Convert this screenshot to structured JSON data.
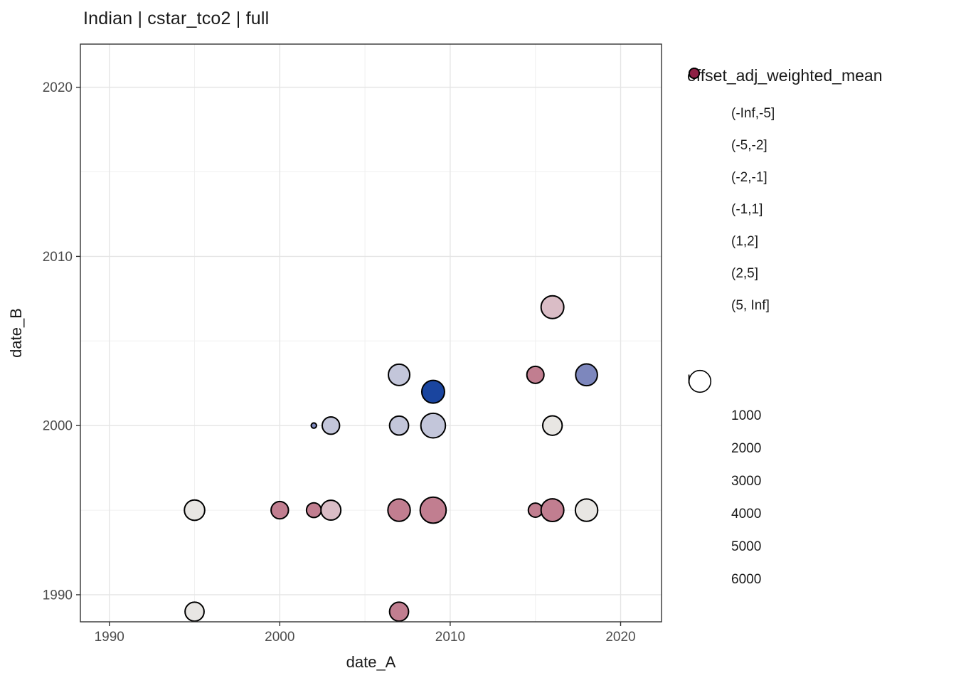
{
  "title": "Indian | cstar_tco2 | full",
  "chart_data": {
    "type": "scatter",
    "title": "Indian | cstar_tco2 | full",
    "xlabel": "date_A",
    "ylabel": "date_B",
    "xlim": [
      1988.3,
      2022.4
    ],
    "ylim": [
      1988.4,
      2022.55
    ],
    "x_ticks": [
      "1990",
      "2000",
      "2010",
      "2020"
    ],
    "y_ticks": [
      "1990",
      "2000",
      "2010",
      "2020"
    ],
    "x_tick_values": [
      1990,
      2000,
      2010,
      2020
    ],
    "y_tick_values": [
      1990,
      2000,
      2010,
      2020
    ],
    "x_minor_values": [
      1995,
      2005,
      2015
    ],
    "y_minor_values": [
      1995,
      2005,
      2015
    ],
    "grid": true,
    "legend_position": "right",
    "points": [
      {
        "x": 1995,
        "y": 1995,
        "n": 5300,
        "bin": "(-1,1]"
      },
      {
        "x": 2000,
        "y": 1995,
        "n": 4000,
        "bin": "(2,5]"
      },
      {
        "x": 2002,
        "y": 1995,
        "n": 3000,
        "bin": "(2,5]"
      },
      {
        "x": 2003,
        "y": 1995,
        "n": 5100,
        "bin": "(1,2]"
      },
      {
        "x": 2007,
        "y": 1995,
        "n": 6300,
        "bin": "(2,5]"
      },
      {
        "x": 2009,
        "y": 1995,
        "n": 8300,
        "bin": "(2,5]"
      },
      {
        "x": 2015,
        "y": 1995,
        "n": 2800,
        "bin": "(2,5]"
      },
      {
        "x": 2016,
        "y": 1995,
        "n": 6500,
        "bin": "(2,5]"
      },
      {
        "x": 2018,
        "y": 1995,
        "n": 6300,
        "bin": "(-1,1]"
      },
      {
        "x": 2002,
        "y": 2000,
        "n": 600,
        "bin": "(-5,-2]"
      },
      {
        "x": 2003,
        "y": 2000,
        "n": 4000,
        "bin": "(-2,-1]"
      },
      {
        "x": 2007,
        "y": 2000,
        "n": 4700,
        "bin": "(-2,-1]"
      },
      {
        "x": 2009,
        "y": 2000,
        "n": 7500,
        "bin": "(-2,-1]"
      },
      {
        "x": 2016,
        "y": 2000,
        "n": 4900,
        "bin": "(-1,1]"
      },
      {
        "x": 2007,
        "y": 2003,
        "n": 5800,
        "bin": "(-2,-1]"
      },
      {
        "x": 2009,
        "y": 2002,
        "n": 6500,
        "bin": "(-Inf,-5]"
      },
      {
        "x": 2015,
        "y": 2003,
        "n": 3900,
        "bin": "(2,5]"
      },
      {
        "x": 2018,
        "y": 2003,
        "n": 6000,
        "bin": "(-5,-2]"
      },
      {
        "x": 2016,
        "y": 2007,
        "n": 6500,
        "bin": "(1,2]"
      },
      {
        "x": 1995,
        "y": 1989,
        "n": 4700,
        "bin": "(-1,1]"
      },
      {
        "x": 2007,
        "y": 1989,
        "n": 4700,
        "bin": "(2,5]"
      }
    ],
    "color_legend": {
      "title": "offset_adj_weighted_mean",
      "entries": [
        {
          "label": "(-Inf,-5]",
          "color": "#1a459f"
        },
        {
          "label": "(-5,-2]",
          "color": "#7d87bd"
        },
        {
          "label": "(-2,-1]",
          "color": "#c3c6da"
        },
        {
          "label": "(-1,1]",
          "color": "#e8e6e3"
        },
        {
          "label": "(1,2]",
          "color": "#dabdc6"
        },
        {
          "label": "(2,5]",
          "color": "#c17e90"
        },
        {
          "label": "(5, Inf]",
          "color": "#8e2045"
        }
      ]
    },
    "size_legend": {
      "title": "n",
      "values": [
        "1000",
        "2000",
        "3000",
        "4000",
        "5000",
        "6000"
      ],
      "numeric_values": [
        1000,
        2000,
        3000,
        4000,
        5000,
        6000
      ]
    },
    "size_scale": {
      "a": -1.6,
      "b": 0.2182
    },
    "style": {
      "point_stroke": "#000000",
      "point_stroke_width": 2,
      "panel_border": "#333333",
      "grid_major": "#e5e5e5",
      "grid_minor": "#f0f0f0",
      "tick_color": "#333333",
      "tick_label_color": "#4d4d4d",
      "axis_title_color": "#1a1a1a"
    }
  }
}
